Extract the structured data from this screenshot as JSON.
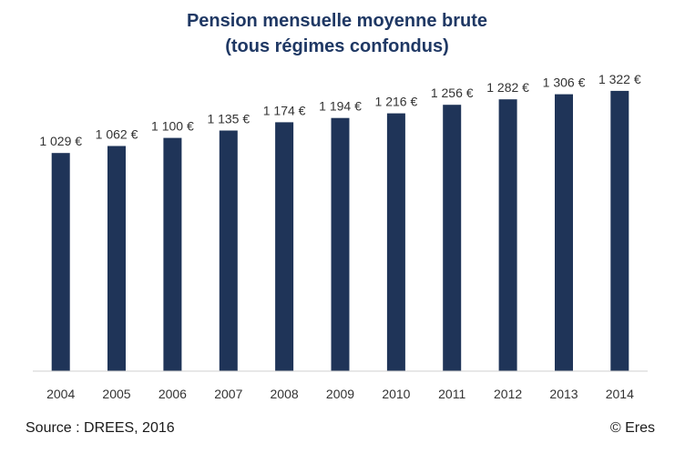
{
  "chart_data": {
    "type": "bar",
    "title_lines": [
      "Pension mensuelle moyenne brute",
      "(tous régimes confondus)"
    ],
    "categories": [
      "2004",
      "2005",
      "2006",
      "2007",
      "2008",
      "2009",
      "2010",
      "2011",
      "2012",
      "2013",
      "2014"
    ],
    "values": [
      1029,
      1062,
      1100,
      1135,
      1174,
      1194,
      1216,
      1256,
      1282,
      1306,
      1322
    ],
    "data_labels": [
      "1 029 €",
      "1 062 €",
      "1 100 €",
      "1 135 €",
      "1 174 €",
      "1 194 €",
      "1 216 €",
      "1 256 €",
      "1 282 €",
      "1 306 €",
      "1 322 €"
    ],
    "ylim": [
      0,
      1330
    ],
    "grid": false,
    "legend": "none",
    "bar_color": "#1f3458",
    "title_color": "#1f3864"
  },
  "footer": {
    "source": "Source : DREES, 2016",
    "credit": "© Eres"
  }
}
